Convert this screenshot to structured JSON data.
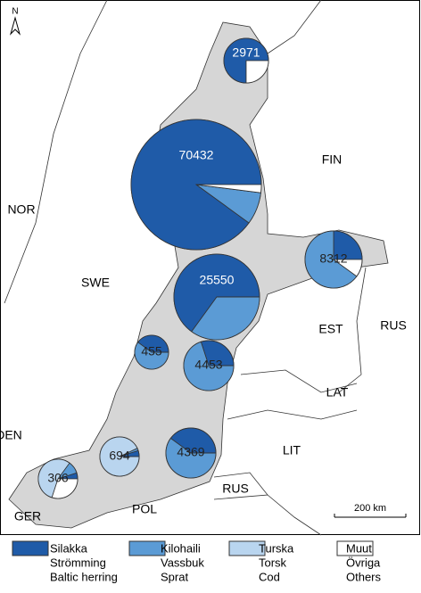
{
  "north": "N",
  "countries": [
    "NOR",
    "SWE",
    "FIN",
    "EST",
    "RUS",
    "LAT",
    "LIT",
    "RUS",
    "POL",
    "GER",
    "DEN"
  ],
  "scale_bar": "200 km",
  "legend": [
    {
      "fi": "Silakka",
      "sv": "Strömming",
      "en": "Baltic herring",
      "color": "#1f5ba8"
    },
    {
      "fi": "Kilohaili",
      "sv": "Vassbuk",
      "en": "Sprat",
      "color": "#5b9bd5"
    },
    {
      "fi": "Turska",
      "sv": "Torsk",
      "en": "Cod",
      "color": "#b9d5ef"
    },
    {
      "fi": "Muut",
      "sv": "Övriga",
      "en": "Others",
      "color": "#ffffff"
    }
  ],
  "pies": [
    {
      "total": 2971,
      "shares": [
        75,
        0,
        0,
        25
      ]
    },
    {
      "total": 70432,
      "shares": [
        90,
        8,
        0,
        2
      ]
    },
    {
      "total": 25550,
      "shares": [
        65,
        35,
        0,
        0
      ]
    },
    {
      "total": 8312,
      "shares": [
        25,
        65,
        0,
        10
      ]
    },
    {
      "total": 455,
      "shares": [
        40,
        60,
        0,
        0
      ]
    },
    {
      "total": 4453,
      "shares": [
        30,
        70,
        0,
        0
      ]
    },
    {
      "total": 4369,
      "shares": [
        40,
        60,
        0,
        0
      ]
    },
    {
      "total": 694,
      "shares": [
        5,
        2,
        93,
        0
      ]
    },
    {
      "total": 306,
      "shares": [
        5,
        10,
        55,
        30
      ]
    }
  ]
}
